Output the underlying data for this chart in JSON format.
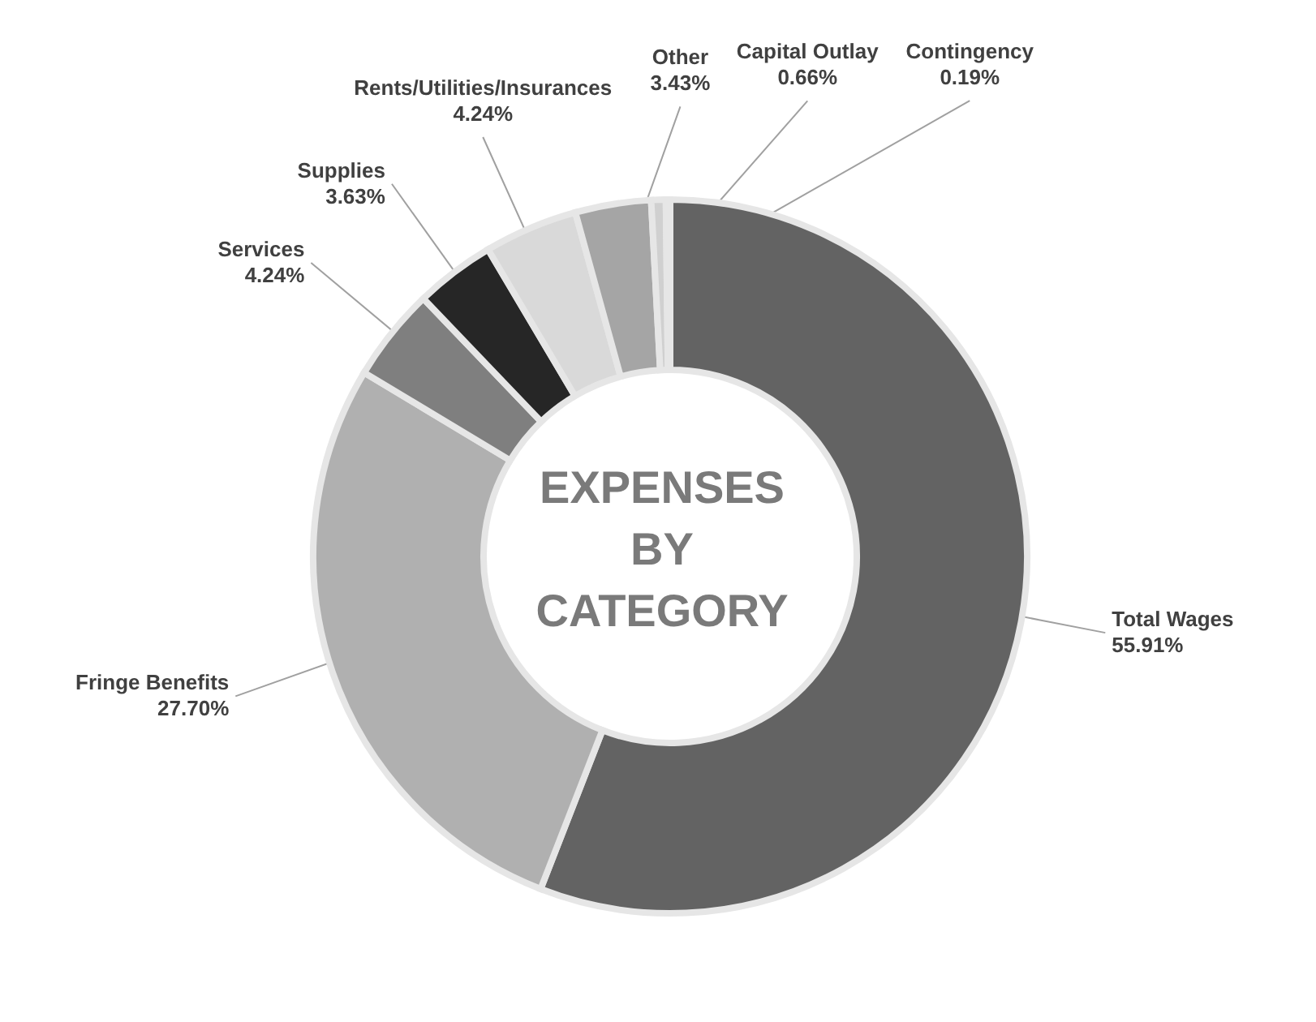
{
  "chart_data": {
    "type": "donut",
    "title": "EXPENSES BY CATEGORY",
    "categories": [
      "Total Wages",
      "Fringe Benefits",
      "Services",
      "Supplies",
      "Rents/Utilities/Insurances",
      "Other",
      "Capital Outlay",
      "Contingency"
    ],
    "values": [
      55.91,
      27.7,
      4.24,
      3.63,
      4.24,
      3.43,
      0.66,
      0.19
    ],
    "value_labels": [
      "55.91%",
      "27.70%",
      "4.24%",
      "3.63%",
      "4.24%",
      "3.43%",
      "0.66%",
      "0.19%"
    ],
    "colors": [
      "#636363",
      "#b0b0b0",
      "#7f7f7f",
      "#262626",
      "#d9d9d9",
      "#a5a5a5",
      "#d0d0d0",
      "#e3e3e3"
    ]
  }
}
